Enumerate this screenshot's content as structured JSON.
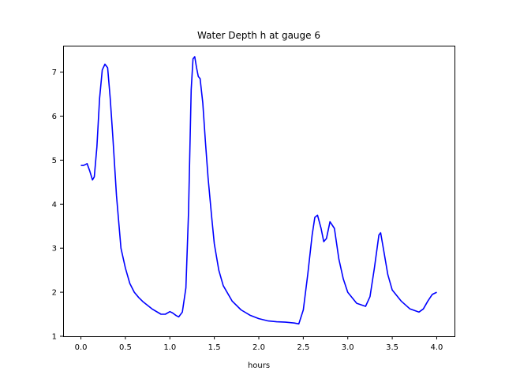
{
  "chart_data": {
    "type": "line",
    "title": "Water Depth h at gauge 6",
    "xlabel": "hours",
    "ylabel": "",
    "xlim": [
      -0.2,
      4.2
    ],
    "ylim": [
      1.0,
      7.6
    ],
    "xticks": [
      0.0,
      0.5,
      1.0,
      1.5,
      2.0,
      2.5,
      3.0,
      3.5,
      4.0
    ],
    "xtick_labels": [
      "0.0",
      "0.5",
      "1.0",
      "1.5",
      "2.0",
      "2.5",
      "3.0",
      "3.5",
      "4.0"
    ],
    "yticks": [
      1,
      2,
      3,
      4,
      5,
      6,
      7
    ],
    "ytick_labels": [
      "1",
      "2",
      "3",
      "4",
      "5",
      "6",
      "7"
    ],
    "grid": false,
    "series": [
      {
        "color": "#0000ff",
        "x": [
          0.0,
          0.03,
          0.07,
          0.1,
          0.13,
          0.15,
          0.18,
          0.21,
          0.24,
          0.27,
          0.3,
          0.33,
          0.36,
          0.4,
          0.45,
          0.5,
          0.55,
          0.6,
          0.65,
          0.7,
          0.8,
          0.9,
          0.95,
          1.0,
          1.03,
          1.07,
          1.1,
          1.14,
          1.18,
          1.21,
          1.24,
          1.26,
          1.28,
          1.3,
          1.32,
          1.34,
          1.37,
          1.4,
          1.43,
          1.47,
          1.5,
          1.55,
          1.6,
          1.7,
          1.8,
          1.9,
          2.0,
          2.1,
          2.2,
          2.3,
          2.4,
          2.45,
          2.5,
          2.55,
          2.6,
          2.63,
          2.66,
          2.7,
          2.73,
          2.76,
          2.8,
          2.85,
          2.9,
          2.95,
          3.0,
          3.1,
          3.2,
          3.25,
          3.3,
          3.35,
          3.37,
          3.4,
          3.45,
          3.5,
          3.6,
          3.7,
          3.8,
          3.85,
          3.9,
          3.95,
          4.0
        ],
        "y": [
          4.88,
          4.88,
          4.92,
          4.75,
          4.55,
          4.62,
          5.3,
          6.4,
          7.05,
          7.18,
          7.1,
          6.4,
          5.5,
          4.2,
          3.0,
          2.55,
          2.2,
          2.0,
          1.88,
          1.78,
          1.62,
          1.5,
          1.5,
          1.56,
          1.53,
          1.47,
          1.44,
          1.55,
          2.1,
          3.8,
          6.6,
          7.3,
          7.35,
          7.1,
          6.9,
          6.85,
          6.3,
          5.4,
          4.6,
          3.7,
          3.1,
          2.5,
          2.15,
          1.8,
          1.6,
          1.48,
          1.4,
          1.35,
          1.33,
          1.32,
          1.3,
          1.28,
          1.6,
          2.4,
          3.3,
          3.7,
          3.75,
          3.45,
          3.15,
          3.22,
          3.6,
          3.45,
          2.75,
          2.3,
          2.0,
          1.75,
          1.68,
          1.9,
          2.55,
          3.3,
          3.35,
          3.0,
          2.4,
          2.05,
          1.8,
          1.62,
          1.55,
          1.62,
          1.8,
          1.95,
          2.0
        ]
      }
    ]
  }
}
